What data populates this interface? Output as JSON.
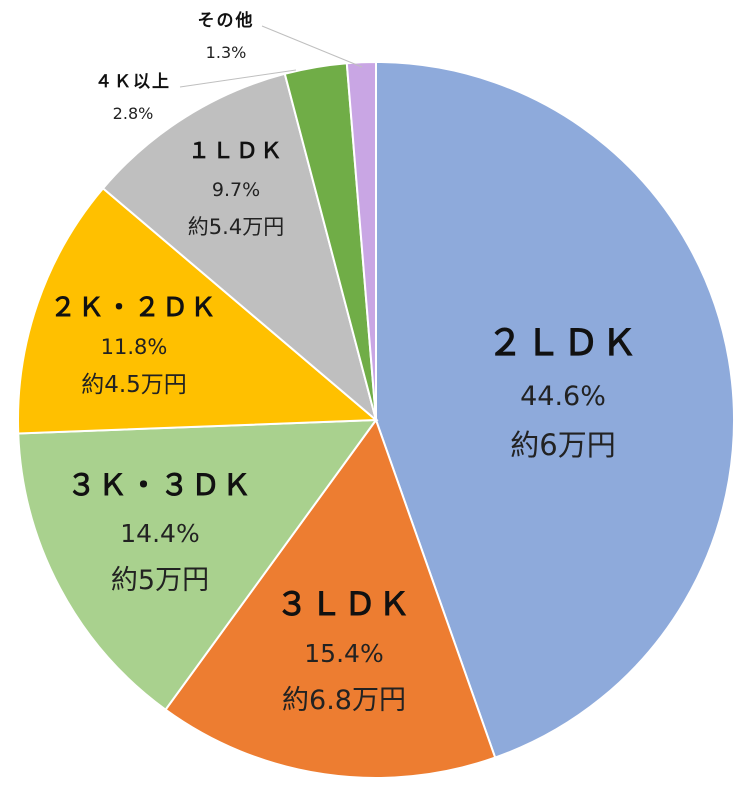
{
  "chart_data": {
    "type": "pie",
    "title": "",
    "slices": [
      {
        "label": "２ＬＤＫ",
        "percent": 44.6,
        "percent_label": "44.6%",
        "rent_label": "約6万円",
        "color": "#8eaadb"
      },
      {
        "label": "３ＬＤＫ",
        "percent": 15.4,
        "percent_label": "15.4%",
        "rent_label": "約6.8万円",
        "color": "#ed7d31"
      },
      {
        "label": "３Ｋ・３ＤＫ",
        "percent": 14.4,
        "percent_label": "14.4%",
        "rent_label": "約5万円",
        "color": "#a9d18e"
      },
      {
        "label": "２Ｋ・２ＤＫ",
        "percent": 11.8,
        "percent_label": "11.8%",
        "rent_label": "約4.5万円",
        "color": "#ffc000"
      },
      {
        "label": "１ＬＤＫ",
        "percent": 9.7,
        "percent_label": "9.7%",
        "rent_label": "約5.4万円",
        "color": "#bfbfbf"
      },
      {
        "label": "４Ｋ以上",
        "percent": 2.8,
        "percent_label": "2.8%",
        "rent_label": "",
        "color": "#70ad47"
      },
      {
        "label": "その他",
        "percent": 1.3,
        "percent_label": "1.3%",
        "rent_label": "",
        "color": "#c9a6e4"
      }
    ]
  }
}
